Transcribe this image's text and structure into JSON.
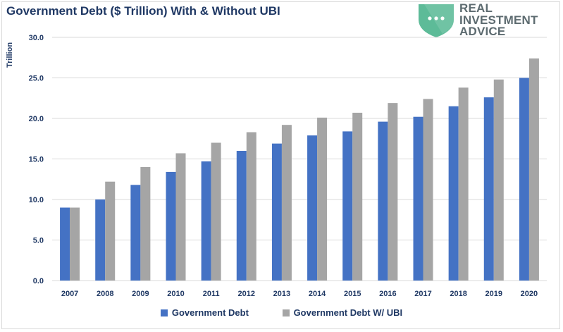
{
  "chart_data": {
    "type": "bar",
    "title": "Government Debt ($ Trillion) With & Without UBI",
    "xlabel": "",
    "ylabel": "Trillion",
    "ylim": [
      0,
      30
    ],
    "yticks": [
      "0.0",
      "5.0",
      "10.0",
      "15.0",
      "20.0",
      "25.0",
      "30.0"
    ],
    "grid": true,
    "legend_position": "bottom",
    "categories": [
      "2007",
      "2008",
      "2009",
      "2010",
      "2011",
      "2012",
      "2013",
      "2014",
      "2015",
      "2016",
      "2017",
      "2018",
      "2019",
      "2020"
    ],
    "series": [
      {
        "name": "Government Debt",
        "color": "#4472c4",
        "values": [
          9.0,
          10.0,
          11.8,
          13.4,
          14.7,
          16.0,
          16.9,
          17.9,
          18.4,
          19.6,
          20.2,
          21.5,
          22.6,
          25.0
        ]
      },
      {
        "name": "Government Debt W/ UBI",
        "color": "#a5a5a5",
        "values": [
          9.0,
          12.2,
          14.0,
          15.7,
          17.0,
          18.3,
          19.2,
          20.1,
          20.7,
          21.9,
          22.4,
          23.8,
          24.8,
          27.4
        ]
      }
    ]
  },
  "logo": {
    "lines": [
      "REAL",
      "INVESTMENT",
      "ADVICE"
    ],
    "shield_color": "#5dbb98",
    "text_color": "#5d6b70"
  }
}
